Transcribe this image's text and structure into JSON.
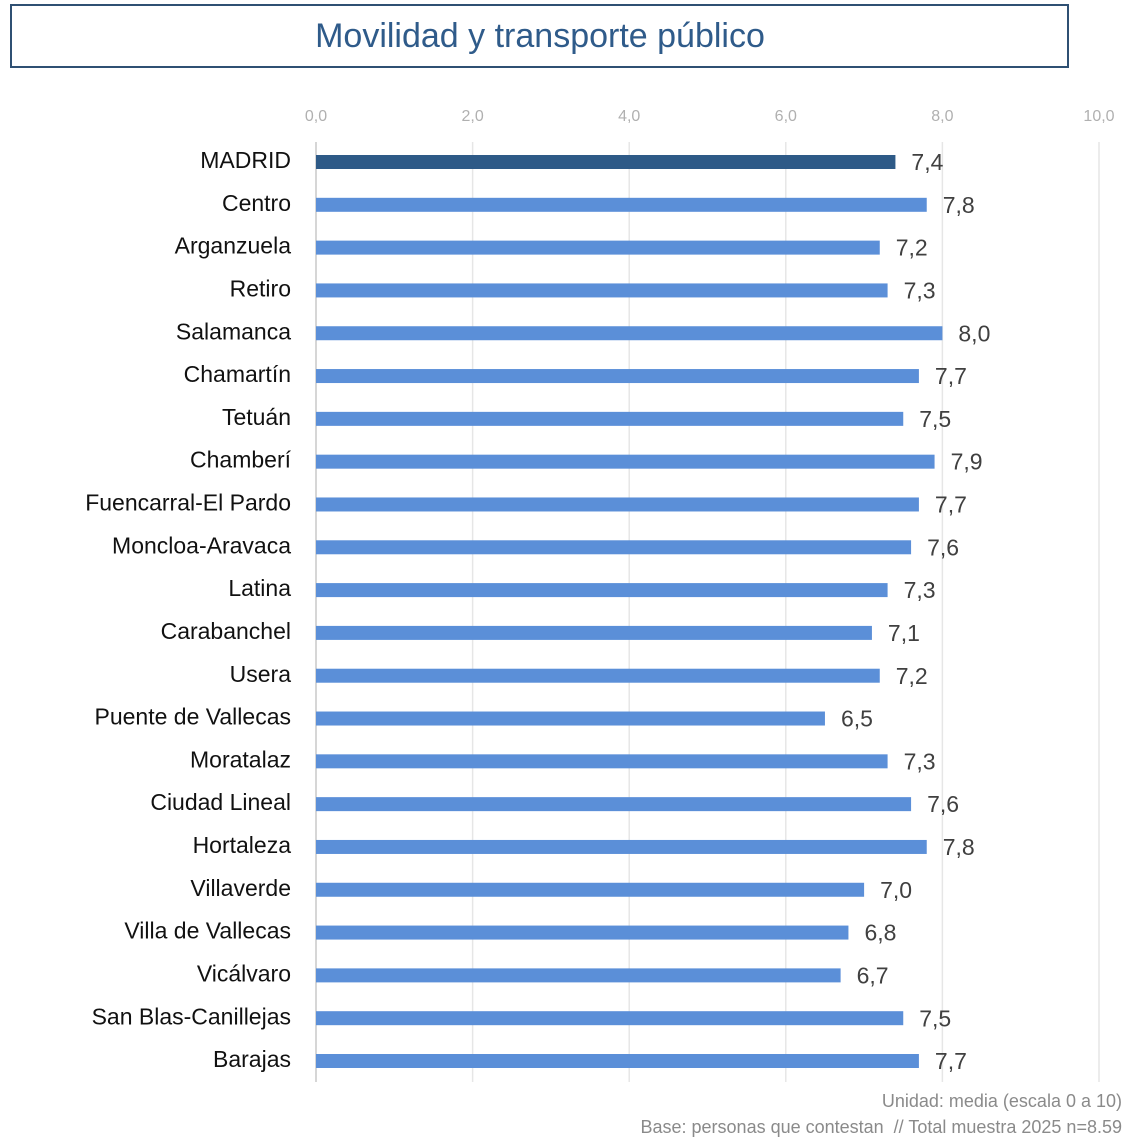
{
  "chart_data": {
    "type": "barh",
    "title": "Movilidad y transporte público",
    "categories": [
      "MADRID",
      "Centro",
      "Arganzuela",
      "Retiro",
      "Salamanca",
      "Chamartín",
      "Tetuán",
      "Chamberí",
      "Fuencarral-El Pardo",
      "Moncloa-Aravaca",
      "Latina",
      "Carabanchel",
      "Usera",
      "Puente de Vallecas",
      "Moratalaz",
      "Ciudad Lineal",
      "Hortaleza",
      "Villaverde",
      "Villa de Vallecas",
      "Vicálvaro",
      "San Blas-Canillejas",
      "Barajas"
    ],
    "values": [
      7.4,
      7.8,
      7.2,
      7.3,
      8.0,
      7.7,
      7.5,
      7.9,
      7.7,
      7.6,
      7.3,
      7.1,
      7.2,
      6.5,
      7.3,
      7.6,
      7.8,
      7.0,
      6.8,
      6.7,
      7.5,
      7.7
    ],
    "value_labels": [
      "7,4",
      "7,8",
      "7,2",
      "7,3",
      "8,0",
      "7,7",
      "7,5",
      "7,9",
      "7,7",
      "7,6",
      "7,3",
      "7,1",
      "7,2",
      "6,5",
      "7,3",
      "7,6",
      "7,8",
      "7,0",
      "6,8",
      "6,7",
      "7,5",
      "7,7"
    ],
    "colors": [
      "#2e5a87",
      "#5b8fd8",
      "#5b8fd8",
      "#5b8fd8",
      "#5b8fd8",
      "#5b8fd8",
      "#5b8fd8",
      "#5b8fd8",
      "#5b8fd8",
      "#5b8fd8",
      "#5b8fd8",
      "#5b8fd8",
      "#5b8fd8",
      "#5b8fd8",
      "#5b8fd8",
      "#5b8fd8",
      "#5b8fd8",
      "#5b8fd8",
      "#5b8fd8",
      "#5b8fd8",
      "#5b8fd8",
      "#5b8fd8"
    ],
    "xlim": [
      0,
      10
    ],
    "xticks": [
      {
        "value": 0,
        "label": "0,0"
      },
      {
        "value": 2,
        "label": "2,0"
      },
      {
        "value": 4,
        "label": "4,0"
      },
      {
        "value": 6,
        "label": "6,0"
      },
      {
        "value": 8,
        "label": "8,0"
      },
      {
        "value": 10,
        "label": "10,0"
      }
    ],
    "grid": true,
    "notes": [
      "Unidad: media (escala 0 a 10)",
      "Base: personas que contestan  // Total muestra 2025 n=8.59"
    ]
  }
}
